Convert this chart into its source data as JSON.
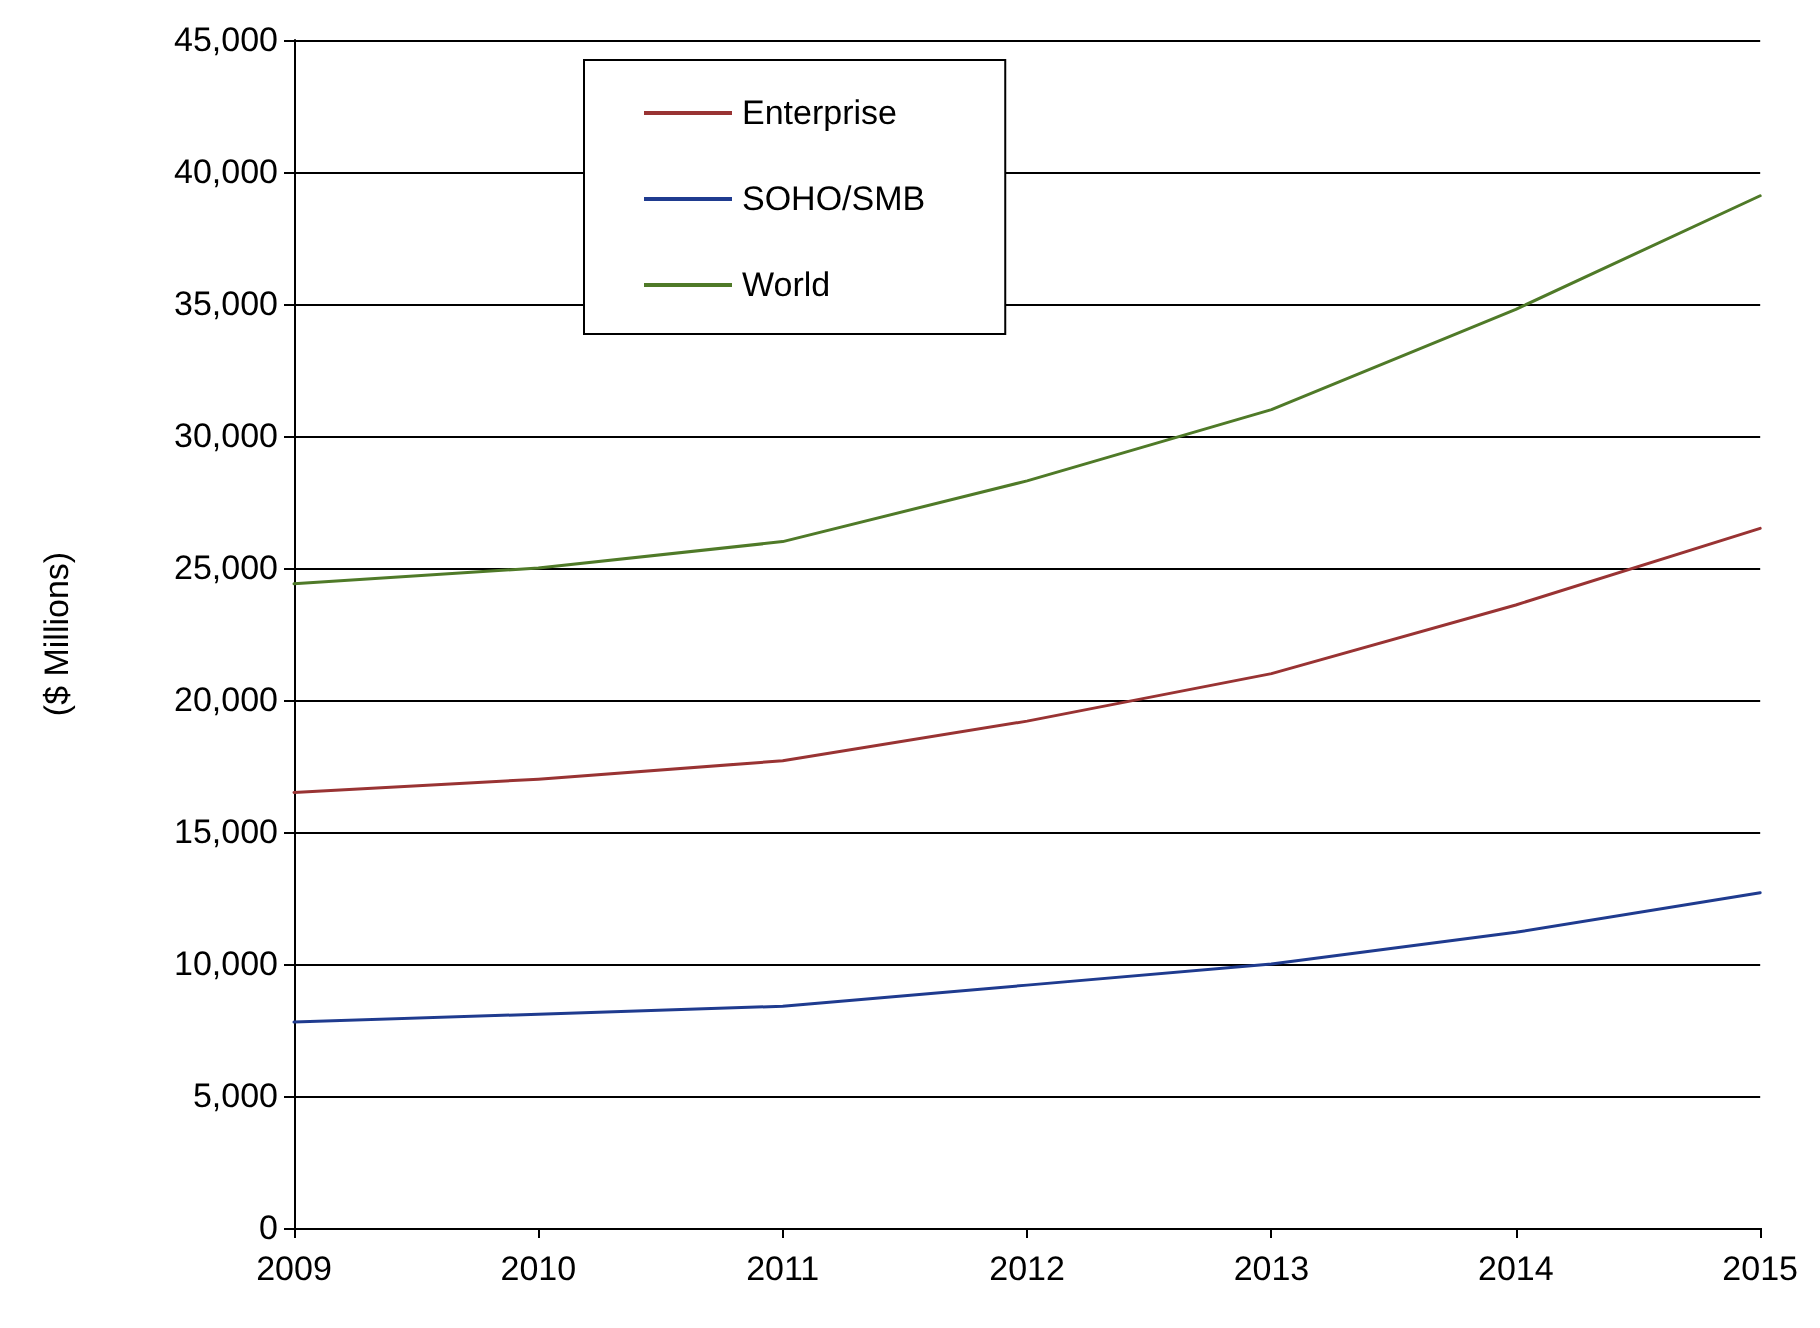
{
  "chart_data": {
    "type": "line",
    "ylabel": "($ Millions)",
    "x": [
      2009,
      2010,
      2011,
      2012,
      2013,
      2014,
      2015
    ],
    "series": [
      {
        "name": "Enterprise",
        "color": "#993333",
        "values": [
          16500,
          17000,
          17700,
          19200,
          21000,
          23600,
          26500
        ]
      },
      {
        "name": "SOHO/SMB",
        "color": "#1f3b8f",
        "values": [
          7800,
          8100,
          8400,
          9200,
          10000,
          11200,
          12700
        ]
      },
      {
        "name": "World",
        "color": "#4f7a28",
        "values": [
          24400,
          25000,
          26000,
          28300,
          31000,
          34800,
          39100
        ]
      }
    ],
    "xlim": [
      2009,
      2015
    ],
    "xticks": [
      2009,
      2010,
      2011,
      2012,
      2013,
      2014,
      2015
    ],
    "ylim": [
      0,
      45000
    ],
    "yticks": [
      0,
      {
        "value": 5000,
        "label": "5,000"
      },
      {
        "value": 10000,
        "label": "10,000"
      },
      {
        "value": 15000,
        "label": "15,000"
      },
      {
        "value": 20000,
        "label": "20,000"
      },
      {
        "value": 25000,
        "label": "25,000"
      },
      {
        "value": 30000,
        "label": "30,000"
      },
      {
        "value": 35000,
        "label": "35,000"
      },
      {
        "value": 40000,
        "label": "40,000"
      },
      {
        "value": 45000,
        "label": "45,000"
      }
    ],
    "grid": "y",
    "legend": "top left",
    "marker": "none",
    "line_style": "solid"
  }
}
